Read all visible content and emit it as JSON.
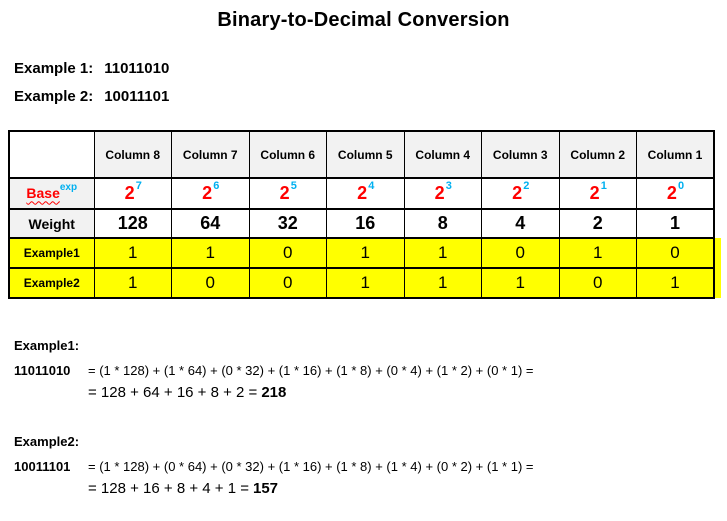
{
  "title": "Binary-to-Decimal Conversion",
  "intro": {
    "example1_label": "Example 1:",
    "example1_value": "11011010",
    "example2_label": "Example 2:",
    "example2_value": "10011101"
  },
  "table": {
    "corner": "",
    "columns": [
      "Column 8",
      "Column 7",
      "Column 6",
      "Column 5",
      "Column 4",
      "Column 3",
      "Column 2",
      "Column 1"
    ],
    "base_row": {
      "label": "Base",
      "label_sup": "exp",
      "base": "2",
      "exponents": [
        "7",
        "6",
        "5",
        "4",
        "3",
        "2",
        "1",
        "0"
      ]
    },
    "weight_row": {
      "label": "Weight",
      "values": [
        "128",
        "64",
        "32",
        "16",
        "8",
        "4",
        "2",
        "1"
      ]
    },
    "example1_row": {
      "label": "Example1",
      "bits": [
        "1",
        "1",
        "0",
        "1",
        "1",
        "0",
        "1",
        "0"
      ]
    },
    "example2_row": {
      "label": "Example2",
      "bits": [
        "1",
        "0",
        "0",
        "1",
        "1",
        "1",
        "0",
        "1"
      ]
    }
  },
  "workings": {
    "example1": {
      "heading": "Example1:",
      "binary": "11011010",
      "expansion": "= (1 * 128) + (1 * 64) + (0 * 32) + (1 * 16) + (1 * 8) + (0 * 4) + (1 * 2) + (0 * 1) =",
      "sum": "= 128 + 64 + 16 + 8 + 2 =",
      "result": "218"
    },
    "example2": {
      "heading": "Example2:",
      "binary": "10011101",
      "expansion": "= (1 * 128) + (0 * 64) + (0 * 32) + (1 * 16) + (1 * 8) + (1 * 4) + (0 * 2) + (1 * 1) =",
      "sum": "= 128 + 16 + 8 + 4 + 1 =",
      "result": "157"
    }
  },
  "colors": {
    "base_red": "#FF0000",
    "exponent_blue": "#00B0F0",
    "header_bg": "#F2F2F2",
    "highlight_yellow": "#FFFF00",
    "border": "#000000"
  }
}
